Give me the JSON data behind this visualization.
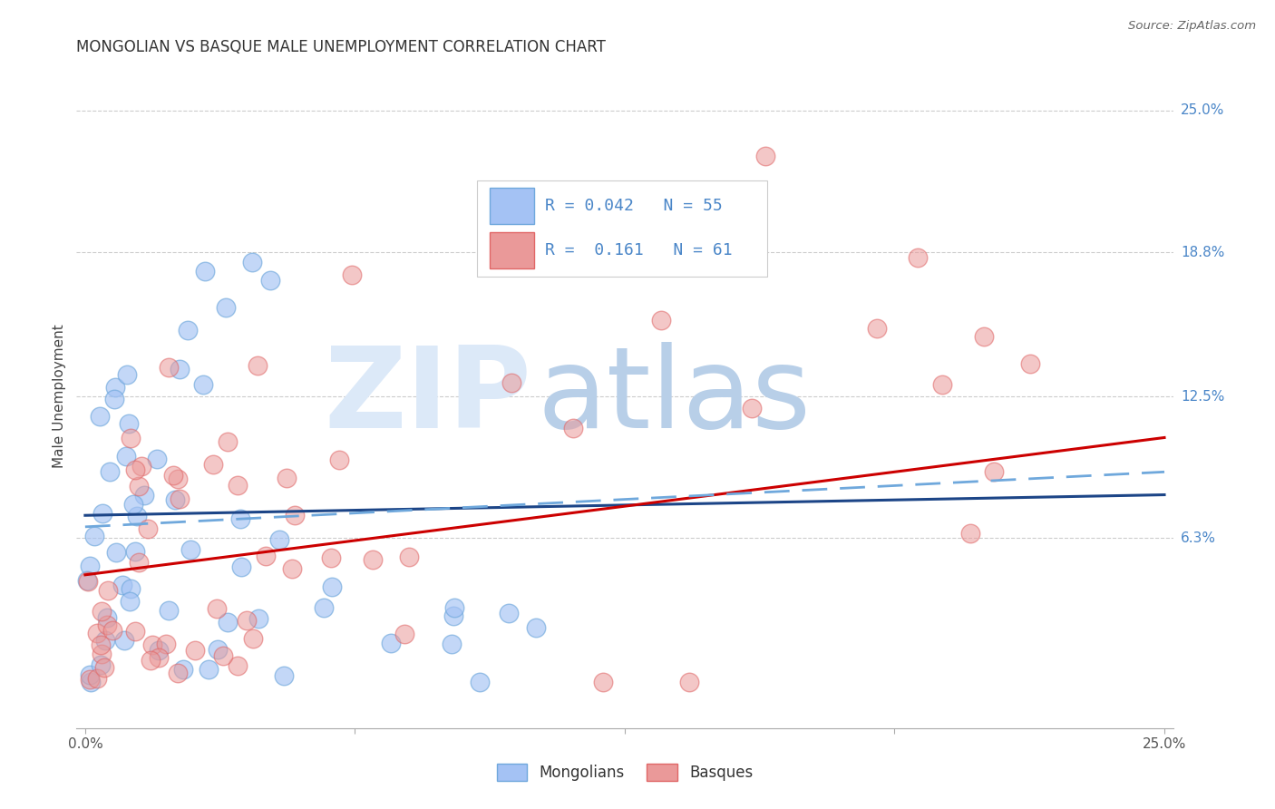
{
  "title": "MONGOLIAN VS BASQUE MALE UNEMPLOYMENT CORRELATION CHART",
  "source": "Source: ZipAtlas.com",
  "ylabel": "Male Unemployment",
  "xlim": [
    0.0,
    0.25
  ],
  "ylim": [
    -0.02,
    0.27
  ],
  "ytick_positions": [
    0.063,
    0.125,
    0.188,
    0.25
  ],
  "ytick_labels": [
    "6.3%",
    "12.5%",
    "18.8%",
    "25.0%"
  ],
  "mongolian_color": "#a4c2f4",
  "mongolian_edge": "#6fa8dc",
  "basque_color": "#ea9999",
  "basque_edge": "#e06666",
  "mongolian_R": 0.042,
  "mongolian_N": 55,
  "basque_R": 0.161,
  "basque_N": 61,
  "background_color": "#ffffff",
  "grid_color": "#cccccc",
  "right_label_color": "#4a86c8",
  "title_color": "#333333",
  "watermark_zip_color": "#dce9f8",
  "watermark_atlas_color": "#b8cfe8",
  "legend_mongolian_label": "Mongolians",
  "legend_basque_label": "Basques",
  "mongo_trend": [
    0.073,
    0.082
  ],
  "basque_trend": [
    0.047,
    0.107
  ],
  "dash_trend": [
    0.068,
    0.092
  ],
  "legend_text_color": "#4a86c8",
  "legend_box_border": "#cccccc"
}
